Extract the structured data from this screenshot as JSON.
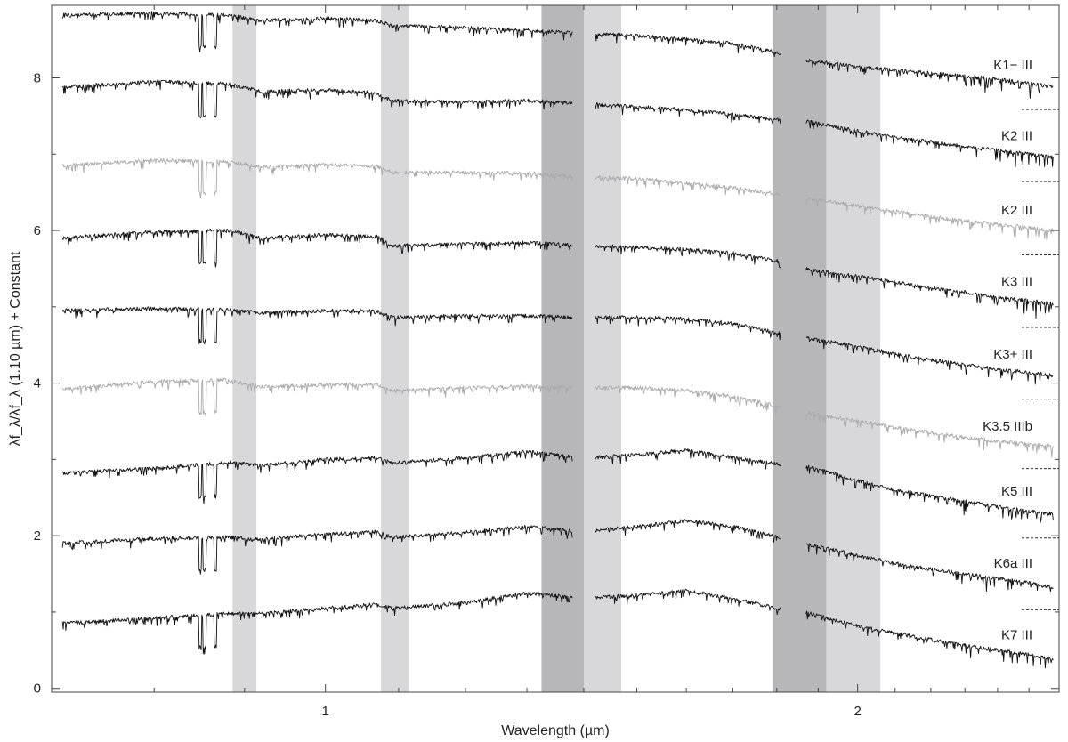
{
  "chart_data": {
    "type": "line",
    "title": "",
    "xlabel": "Wavelength (µm)",
    "ylabel": "λf_λ/λf_λ (1.10 µm) + Constant",
    "xscale": "log",
    "xlim": [
      0.7,
      2.6
    ],
    "ylim": [
      -0.05,
      8.95
    ],
    "x_ticks": [
      {
        "value": 1,
        "label": "1"
      },
      {
        "value": 2,
        "label": "2"
      }
    ],
    "x_minor_ticks": [
      0.8,
      0.9,
      1.1,
      1.2,
      1.3,
      1.4,
      1.5,
      1.6,
      1.7,
      1.8,
      1.9,
      2.1,
      2.2,
      2.3,
      2.4,
      2.5
    ],
    "y_ticks": [
      {
        "value": 0,
        "label": "0"
      },
      {
        "value": 2,
        "label": "2"
      },
      {
        "value": 4,
        "label": "4"
      },
      {
        "value": 6,
        "label": "6"
      },
      {
        "value": 8,
        "label": "8"
      }
    ],
    "y_minor_ticks": [
      1,
      3,
      5,
      7
    ],
    "grid": false,
    "legend": "none",
    "telluric_bands": [
      {
        "x0": 0.886,
        "x1": 0.914,
        "shade": "#d8d8da"
      },
      {
        "x0": 1.075,
        "x1": 1.115,
        "shade": "#d8d8da"
      },
      {
        "x0": 1.325,
        "x1": 1.4,
        "shade": "#b7b7ba"
      },
      {
        "x0": 1.4,
        "x1": 1.47,
        "shade": "#d8d8da"
      },
      {
        "x0": 1.79,
        "x1": 1.92,
        "shade": "#b7b7ba"
      },
      {
        "x0": 1.92,
        "x1": 2.06,
        "shade": "#d8d8da"
      }
    ],
    "gaps": [
      [
        1.38,
        1.42
      ],
      [
        1.81,
        1.87
      ]
    ],
    "series": [
      {
        "name": "K1− III",
        "color": "#111111",
        "x": [
          0.71,
          0.8,
          0.88,
          0.92,
          1.0,
          1.07,
          1.09,
          1.2,
          1.3,
          1.4,
          1.5,
          1.6,
          1.7,
          1.8,
          1.88,
          2.0,
          2.1,
          2.2,
          2.3,
          2.4,
          2.5,
          2.58
        ],
        "values": [
          8.82,
          8.85,
          8.82,
          8.75,
          8.78,
          8.75,
          8.68,
          8.66,
          8.62,
          8.58,
          8.55,
          8.5,
          8.45,
          8.33,
          8.22,
          8.15,
          8.1,
          8.06,
          8.02,
          7.98,
          7.93,
          7.88
        ]
      },
      {
        "name": "K2 III",
        "color": "#111111",
        "x": [
          0.71,
          0.8,
          0.88,
          0.92,
          1.0,
          1.07,
          1.09,
          1.2,
          1.3,
          1.4,
          1.5,
          1.6,
          1.7,
          1.8,
          1.88,
          2.0,
          2.1,
          2.2,
          2.3,
          2.4,
          2.5,
          2.58
        ],
        "values": [
          7.88,
          7.95,
          7.92,
          7.82,
          7.84,
          7.8,
          7.7,
          7.68,
          7.7,
          7.66,
          7.62,
          7.58,
          7.52,
          7.45,
          7.42,
          7.3,
          7.22,
          7.16,
          7.1,
          7.05,
          7.0,
          6.96
        ]
      },
      {
        "name": "K2 III",
        "color": "#aaaaaa",
        "x": [
          0.71,
          0.8,
          0.88,
          0.92,
          1.0,
          1.07,
          1.09,
          1.2,
          1.3,
          1.4,
          1.5,
          1.6,
          1.7,
          1.8,
          1.88,
          2.0,
          2.1,
          2.2,
          2.3,
          2.4,
          2.5,
          2.58
        ],
        "values": [
          6.85,
          6.92,
          6.9,
          6.83,
          6.86,
          6.84,
          6.76,
          6.76,
          6.75,
          6.7,
          6.68,
          6.62,
          6.56,
          6.48,
          6.42,
          6.32,
          6.25,
          6.18,
          6.12,
          6.08,
          6.04,
          6.0
        ]
      },
      {
        "name": "K3 III",
        "color": "#111111",
        "x": [
          0.71,
          0.8,
          0.88,
          0.92,
          1.0,
          1.07,
          1.09,
          1.2,
          1.3,
          1.4,
          1.5,
          1.6,
          1.7,
          1.8,
          1.88,
          2.0,
          2.1,
          2.2,
          2.3,
          2.4,
          2.5,
          2.58
        ],
        "values": [
          5.9,
          5.98,
          6.0,
          5.9,
          5.94,
          5.92,
          5.8,
          5.82,
          5.84,
          5.8,
          5.78,
          5.75,
          5.7,
          5.6,
          5.48,
          5.4,
          5.32,
          5.25,
          5.19,
          5.13,
          5.08,
          5.04
        ]
      },
      {
        "name": "K3+ III",
        "color": "#111111",
        "x": [
          0.71,
          0.8,
          0.88,
          0.92,
          1.0,
          1.07,
          1.09,
          1.2,
          1.3,
          1.4,
          1.5,
          1.6,
          1.7,
          1.8,
          1.88,
          2.0,
          2.1,
          2.2,
          2.3,
          2.4,
          2.5,
          2.58
        ],
        "values": [
          4.95,
          4.98,
          4.96,
          4.92,
          4.95,
          4.94,
          4.86,
          4.88,
          4.88,
          4.86,
          4.86,
          4.84,
          4.78,
          4.66,
          4.58,
          4.48,
          4.38,
          4.3,
          4.24,
          4.18,
          4.14,
          4.1
        ]
      },
      {
        "name": "K3.5 IIIb",
        "color": "#aaaaaa",
        "x": [
          0.71,
          0.8,
          0.88,
          0.92,
          1.0,
          1.07,
          1.09,
          1.2,
          1.3,
          1.4,
          1.5,
          1.6,
          1.7,
          1.8,
          1.88,
          2.0,
          2.1,
          2.2,
          2.3,
          2.4,
          2.5,
          2.58
        ],
        "values": [
          3.92,
          4.02,
          4.04,
          3.95,
          3.98,
          3.98,
          3.9,
          3.94,
          3.96,
          3.94,
          3.94,
          3.9,
          3.82,
          3.7,
          3.6,
          3.5,
          3.42,
          3.35,
          3.29,
          3.24,
          3.2,
          3.17
        ]
      },
      {
        "name": "K5 III",
        "color": "#111111",
        "x": [
          0.71,
          0.8,
          0.88,
          0.92,
          1.0,
          1.07,
          1.09,
          1.2,
          1.3,
          1.4,
          1.5,
          1.6,
          1.7,
          1.8,
          1.88,
          2.0,
          2.1,
          2.2,
          2.3,
          2.4,
          2.5,
          2.58
        ],
        "values": [
          2.82,
          2.88,
          2.96,
          2.92,
          3.0,
          3.02,
          2.95,
          3.02,
          3.1,
          3.02,
          3.06,
          3.12,
          3.02,
          2.94,
          2.9,
          2.72,
          2.6,
          2.52,
          2.45,
          2.38,
          2.32,
          2.28
        ]
      },
      {
        "name": "K6a III",
        "color": "#111111",
        "x": [
          0.71,
          0.8,
          0.88,
          0.92,
          1.0,
          1.07,
          1.09,
          1.2,
          1.3,
          1.4,
          1.5,
          1.6,
          1.7,
          1.8,
          1.88,
          2.0,
          2.1,
          2.2,
          2.3,
          2.4,
          2.5,
          2.58
        ],
        "values": [
          1.9,
          1.96,
          1.98,
          1.95,
          2.02,
          2.05,
          1.98,
          2.04,
          2.12,
          2.05,
          2.12,
          2.2,
          2.12,
          1.98,
          1.88,
          1.74,
          1.64,
          1.56,
          1.5,
          1.44,
          1.38,
          1.32
        ]
      },
      {
        "name": "K7 III",
        "color": "#111111",
        "x": [
          0.71,
          0.8,
          0.88,
          0.92,
          1.0,
          1.07,
          1.09,
          1.2,
          1.3,
          1.4,
          1.5,
          1.6,
          1.7,
          1.8,
          1.88,
          2.0,
          2.1,
          2.2,
          2.3,
          2.4,
          2.5,
          2.58
        ],
        "values": [
          0.85,
          0.92,
          0.98,
          0.98,
          1.05,
          1.1,
          1.05,
          1.12,
          1.25,
          1.18,
          1.22,
          1.28,
          1.18,
          1.05,
          0.98,
          0.82,
          0.72,
          0.64,
          0.56,
          0.5,
          0.44,
          0.38
        ]
      }
    ]
  }
}
